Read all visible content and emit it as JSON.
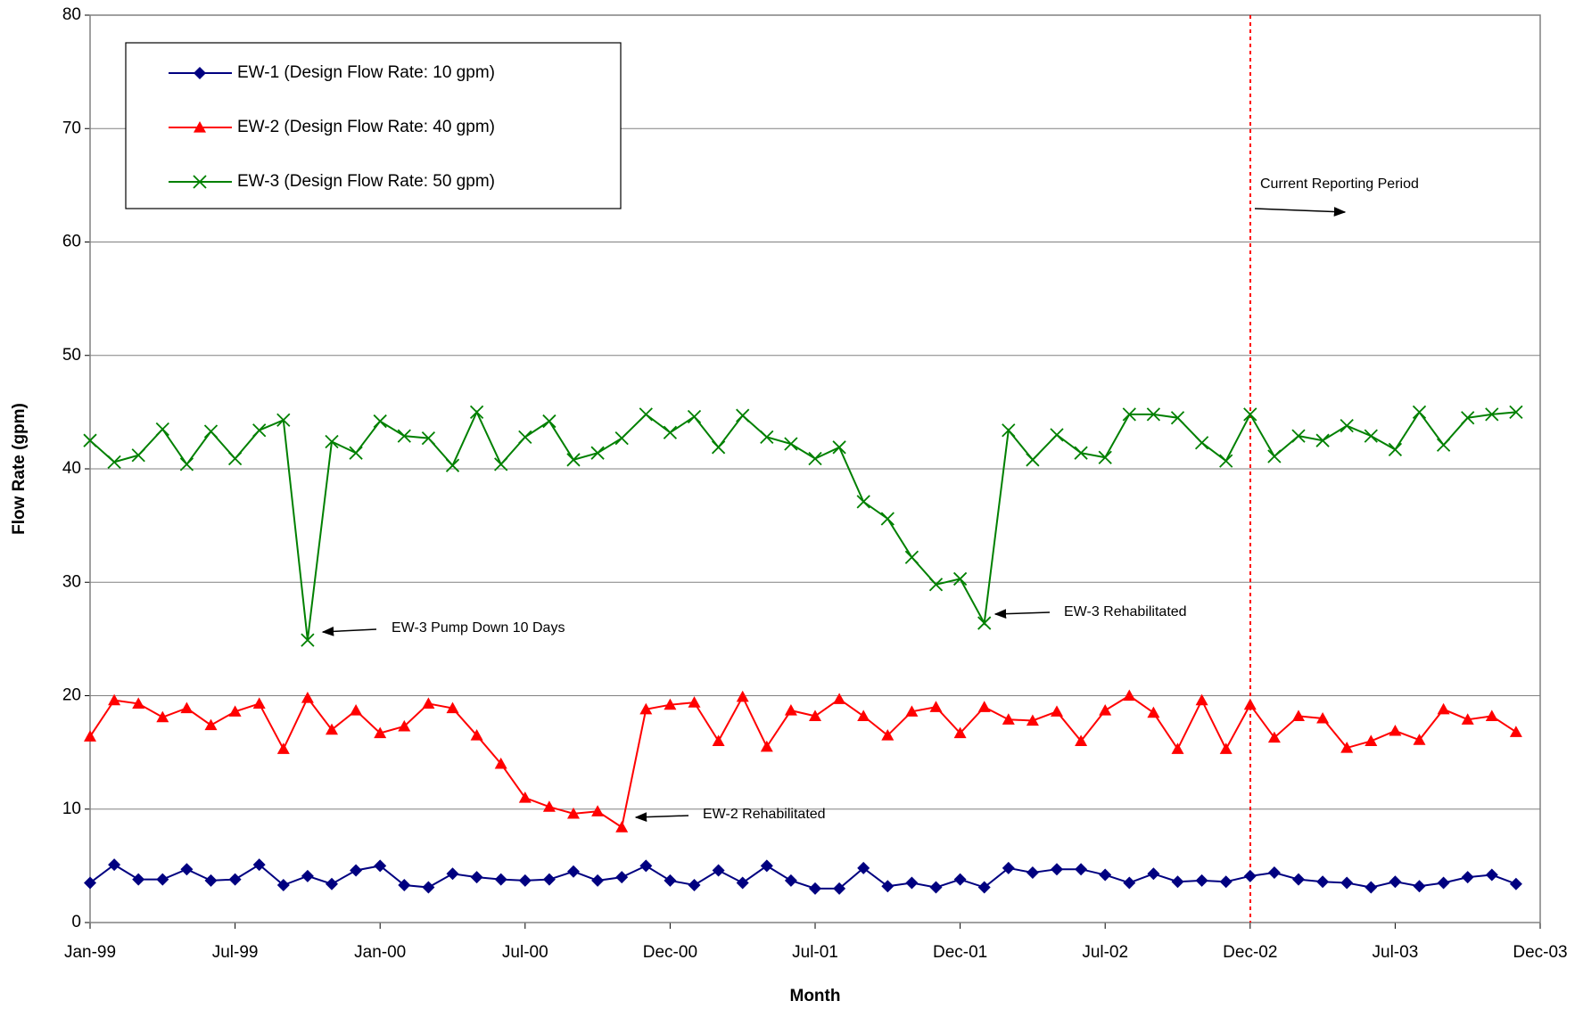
{
  "chart_data": {
    "type": "line",
    "x_label": "Month",
    "y_label": "Flow Rate (gpm)",
    "categories": [
      "Jan-99",
      null,
      null,
      null,
      null,
      null,
      "Jul-99",
      null,
      null,
      null,
      null,
      null,
      "Jan-00",
      null,
      null,
      null,
      null,
      null,
      "Jul-00",
      null,
      null,
      null,
      null,
      null,
      "Dec-00",
      null,
      null,
      null,
      null,
      null,
      "Jul-01",
      null,
      null,
      null,
      null,
      null,
      "Dec-01",
      null,
      null,
      null,
      null,
      null,
      "Jul-02",
      null,
      null,
      null,
      null,
      null,
      "Dec-02",
      null,
      null,
      null,
      null,
      null,
      "Jul-03",
      null,
      null,
      null,
      null,
      null,
      "Dec-03"
    ],
    "ylim": [
      0,
      80
    ],
    "yticks": [
      0,
      10,
      20,
      30,
      40,
      50,
      60,
      70,
      80
    ],
    "grid": true,
    "series": [
      {
        "name": "EW-1 (Design Flow Rate: 10 gpm)",
        "color": "#000080",
        "marker": "diamond",
        "values": [
          3.5,
          5.1,
          3.8,
          3.8,
          4.7,
          3.7,
          3.8,
          5.1,
          3.3,
          4.1,
          3.4,
          4.6,
          5.0,
          3.3,
          3.1,
          4.3,
          4.0,
          3.8,
          3.7,
          3.8,
          4.5,
          3.7,
          4.0,
          5.0,
          3.7,
          3.3,
          4.6,
          3.5,
          5.0,
          3.7,
          3.0,
          3.0,
          4.8,
          3.2,
          3.5,
          3.1,
          3.8,
          3.1,
          4.8,
          4.4,
          4.7,
          4.7,
          4.2,
          3.5,
          4.3,
          3.6,
          3.7,
          3.6,
          4.1,
          4.4,
          3.8,
          3.6,
          3.5,
          3.1,
          3.6,
          3.2,
          3.5,
          4.0,
          4.2,
          3.4,
          null
        ]
      },
      {
        "name": "EW-2 (Design Flow Rate: 40 gpm)",
        "color": "#ff0000",
        "marker": "triangle",
        "values": [
          16.4,
          19.6,
          19.3,
          18.1,
          18.9,
          17.4,
          18.6,
          19.3,
          15.3,
          19.8,
          17.0,
          18.7,
          16.7,
          17.3,
          19.3,
          18.9,
          16.5,
          14.0,
          11.0,
          10.2,
          9.6,
          9.8,
          8.4,
          18.8,
          19.2,
          19.4,
          16.0,
          19.9,
          15.5,
          18.7,
          18.2,
          19.7,
          18.2,
          16.5,
          18.6,
          19.0,
          16.7,
          19.0,
          17.9,
          17.8,
          18.6,
          16.0,
          18.7,
          20.0,
          18.5,
          15.3,
          19.6,
          15.3,
          19.2,
          16.3,
          18.2,
          18.0,
          15.4,
          16.0,
          16.9,
          16.1,
          18.8,
          17.9,
          18.2,
          16.8,
          null
        ]
      },
      {
        "name": "EW-3 (Design Flow Rate: 50 gpm)",
        "color": "#008000",
        "marker": "x",
        "values": [
          42.5,
          40.6,
          41.2,
          43.5,
          40.4,
          43.3,
          40.9,
          43.4,
          44.3,
          24.9,
          42.4,
          41.4,
          44.2,
          42.9,
          42.7,
          40.3,
          45.0,
          40.4,
          42.8,
          44.2,
          40.8,
          41.4,
          42.7,
          44.8,
          43.2,
          44.6,
          41.9,
          44.7,
          42.8,
          42.2,
          40.9,
          41.9,
          37.1,
          35.6,
          32.2,
          29.8,
          30.3,
          26.4,
          43.4,
          40.8,
          43.0,
          41.4,
          41.0,
          44.8,
          44.8,
          44.5,
          42.3,
          40.7,
          44.8,
          41.1,
          42.9,
          42.5,
          43.8,
          42.9,
          41.7,
          45.0,
          42.1,
          44.5,
          44.8,
          45.0,
          null
        ]
      }
    ],
    "annotations": [
      "Current Reporting Period",
      "EW-3 Pump Down 10 Days",
      "EW-3 Rehabilitated",
      "EW-2 Rehabilitated"
    ]
  }
}
